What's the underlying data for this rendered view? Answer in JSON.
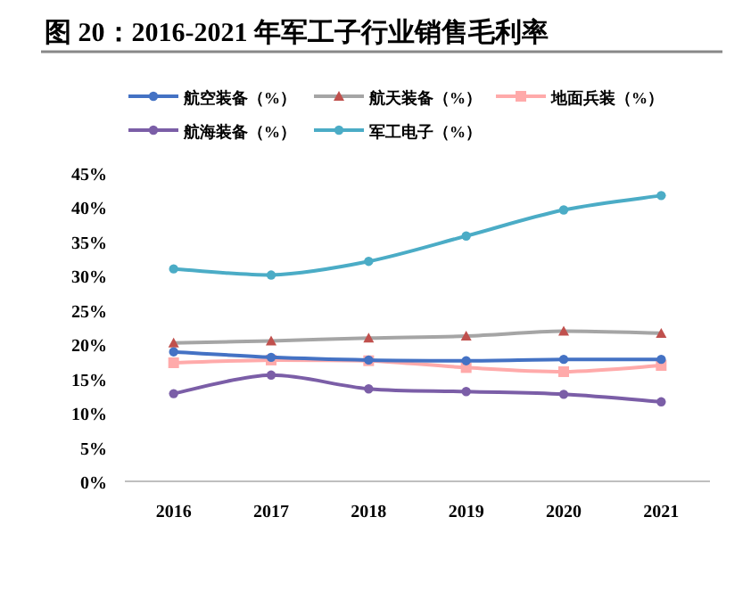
{
  "chart_data": {
    "type": "line",
    "title": "图 20：2016-2021 年军工子行业销售毛利率",
    "categories": [
      "2016",
      "2017",
      "2018",
      "2019",
      "2020",
      "2021"
    ],
    "series": [
      {
        "name": "航空装备（%）",
        "color": "#4472c4",
        "marker": "circle",
        "values": [
          18.9,
          18.1,
          17.7,
          17.6,
          17.8,
          17.8
        ]
      },
      {
        "name": "航天装备（%）",
        "color": "#a5a5a5",
        "marker": "triangle",
        "values": [
          20.2,
          20.5,
          20.9,
          21.2,
          21.9,
          21.6
        ]
      },
      {
        "name": "地面兵装（%）",
        "color": "#ffaaaa",
        "marker": "square",
        "values": [
          17.3,
          17.7,
          17.6,
          16.6,
          16.0,
          16.9
        ]
      },
      {
        "name": "航海装备（%）",
        "color": "#7b5ea7",
        "marker": "circle",
        "values": [
          12.8,
          15.5,
          13.5,
          13.1,
          12.7,
          11.6
        ]
      },
      {
        "name": "军工电子（%）",
        "color": "#4bacc6",
        "marker": "circle",
        "values": [
          31.0,
          30.1,
          32.1,
          35.8,
          39.6,
          41.7
        ]
      }
    ],
    "ylim": [
      0,
      45
    ],
    "yticks": [
      {
        "value": 0,
        "label": "0%"
      },
      {
        "value": 5,
        "label": "5%"
      },
      {
        "value": 10,
        "label": "10%"
      },
      {
        "value": 15,
        "label": "15%"
      },
      {
        "value": 20,
        "label": "20%"
      },
      {
        "value": 25,
        "label": "25%"
      },
      {
        "value": 30,
        "label": "30%"
      },
      {
        "value": 35,
        "label": "35%"
      },
      {
        "value": 40,
        "label": "40%"
      },
      {
        "value": 45,
        "label": "45%"
      }
    ],
    "legend": "top",
    "grid": false
  }
}
